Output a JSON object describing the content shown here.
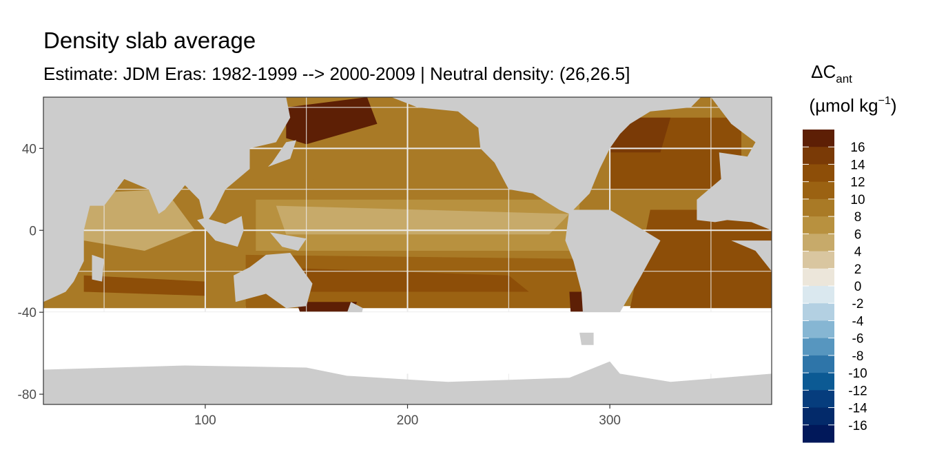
{
  "chart_data": {
    "type": "heatmap",
    "title": "Density slab average",
    "subtitle": "Estimate: JDM Eras: 1982-1999 --> 2000-2009 | Neutral density: (26,26.5]",
    "xlabel": "",
    "ylabel": "",
    "xlim": [
      20,
      380
    ],
    "ylim": [
      -85,
      65
    ],
    "x_ticks": [
      100,
      200,
      300
    ],
    "y_ticks": [
      40,
      0,
      -40,
      -80
    ],
    "grid": true,
    "legend_position": "right",
    "legend_title": "ΔC",
    "legend_title_sub": "ant",
    "legend_unit": "(µmol kg",
    "legend_unit_sup": "−1",
    "legend_unit_end": ")",
    "legend": {
      "labels": [
        "16",
        "14",
        "12",
        "10",
        "8",
        "6",
        "4",
        "2",
        "0",
        "-2",
        "-4",
        "-6",
        "-8",
        "-10",
        "-12",
        "-14",
        "-16"
      ],
      "colors": [
        "#5d1f05",
        "#7a3a06",
        "#8d4e08",
        "#9b6212",
        "#a97a26",
        "#b8913f",
        "#c7aa6a",
        "#d9c6a0",
        "#ece6da",
        "#dae8ef",
        "#b3d0e2",
        "#86b6d3",
        "#5796bf",
        "#2e75a9",
        "#0c5a94",
        "#063d7d",
        "#032a6a",
        "#01185a"
      ]
    },
    "regions": [
      {
        "name": "land",
        "color": "#cccccc"
      },
      {
        "name": "outside-slab",
        "color": "#ffffff"
      },
      {
        "name": "north-pacific-kuroshio",
        "value": 16
      },
      {
        "name": "north-pacific-subtropical",
        "value": 9
      },
      {
        "name": "equatorial-pacific",
        "value": 4
      },
      {
        "name": "south-pacific",
        "value": 10
      },
      {
        "name": "north-atlantic",
        "value": 13
      },
      {
        "name": "south-atlantic",
        "value": 13
      },
      {
        "name": "indian-ocean",
        "value": 9
      },
      {
        "name": "southern-ocean-front",
        "value": 16
      }
    ]
  }
}
